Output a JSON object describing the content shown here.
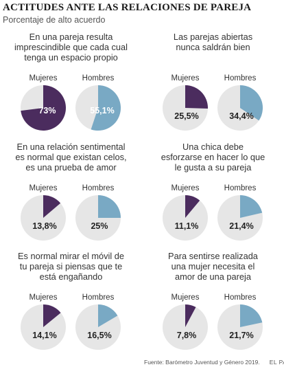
{
  "title": "ACTITUDES ANTE LAS RELACIONES DE PAREJA",
  "subtitle": "Porcentaje de alto acuerdo",
  "labels": {
    "women": "Mujeres",
    "men": "Hombres"
  },
  "footer": {
    "source": "Fuente: Barómetro Juventud y Género 2019.",
    "brand": "EL PAÍS"
  },
  "colors": {
    "women": "#4b2c5e",
    "men": "#79a9c4",
    "rest": "#e6e6e6"
  },
  "chart_data": [
    {
      "type": "pie",
      "question": "En una pareja resulta\nimprescindible que cada cual\ntenga un espacio propio",
      "women": 73,
      "women_label": "73%",
      "men": 55.1,
      "men_label": "55,1%"
    },
    {
      "type": "pie",
      "question": "Las parejas abiertas\nnunca saldrán bien",
      "women": 25.5,
      "women_label": "25,5%",
      "men": 34.4,
      "men_label": "34,4%"
    },
    {
      "type": "pie",
      "question": "En una relación sentimental\nes normal que existan celos,\nes una prueba de amor",
      "women": 13.8,
      "women_label": "13,8%",
      "men": 25,
      "men_label": "25%"
    },
    {
      "type": "pie",
      "question": "Una chica debe\nesforzarse en hacer lo que\nle gusta a su pareja",
      "women": 11.1,
      "women_label": "11,1%",
      "men": 21.4,
      "men_label": "21,4%"
    },
    {
      "type": "pie",
      "question": "Es normal mirar el móvil de\ntu pareja si piensas que te\nestá engañando",
      "women": 14.1,
      "women_label": "14,1%",
      "men": 16.5,
      "men_label": "16,5%"
    },
    {
      "type": "pie",
      "question": "Para sentirse realizada\nuna mujer necesita el\namor de una pareja",
      "women": 7.8,
      "women_label": "7,8%",
      "men": 21.7,
      "men_label": "21,7%"
    }
  ]
}
